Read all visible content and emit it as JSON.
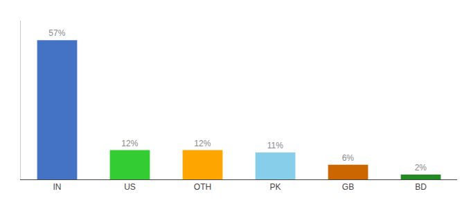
{
  "chart_data": {
    "type": "bar",
    "categories": [
      "IN",
      "US",
      "OTH",
      "PK",
      "GB",
      "BD"
    ],
    "values": [
      57,
      12,
      12,
      11,
      6,
      2
    ],
    "value_labels": [
      "57%",
      "12%",
      "12%",
      "11%",
      "6%",
      "2%"
    ],
    "colors": [
      "#4472C4",
      "#33CC33",
      "#FFA500",
      "#87CEEB",
      "#CC6600",
      "#228B22"
    ],
    "data_labels": true,
    "ylim": [
      0,
      65
    ],
    "tick_labels": "x",
    "grid": false
  }
}
